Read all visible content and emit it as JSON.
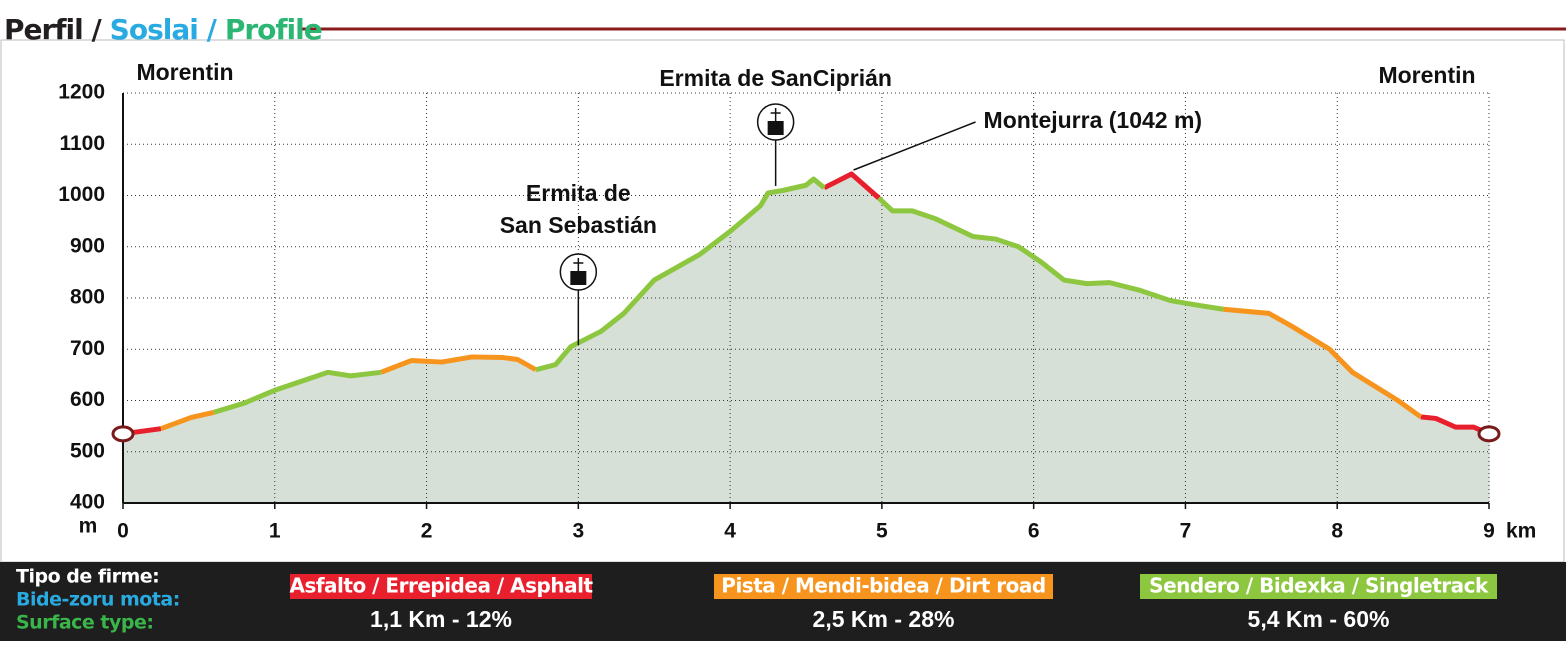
{
  "header": {
    "title_parts": [
      {
        "text": "Perfil /",
        "color": "#231f20"
      },
      {
        "text": "Soslai /",
        "color": "#29abe2"
      },
      {
        "text": "Profile",
        "color": "#2bb673"
      }
    ]
  },
  "chart_data": {
    "type": "line",
    "y_unit": "m",
    "x_unit": "km",
    "x": [
      0,
      0.25,
      0.45,
      0.6,
      0.8,
      1.0,
      1.2,
      1.35,
      1.5,
      1.7,
      1.9,
      2.1,
      2.3,
      2.5,
      2.6,
      2.72,
      2.85,
      2.95,
      3.15,
      3.3,
      3.5,
      3.8,
      4.0,
      4.2,
      4.25,
      4.35,
      4.5,
      4.55,
      4.62,
      4.8,
      4.98,
      5.07,
      5.2,
      5.35,
      5.6,
      5.75,
      5.9,
      6.05,
      6.2,
      6.35,
      6.5,
      6.7,
      6.9,
      7.1,
      7.25,
      7.55,
      7.7,
      7.95,
      8.1,
      8.4,
      8.55,
      8.65,
      8.78,
      8.9,
      9.0
    ],
    "series": [
      {
        "name": "Asfalto / Errepidea / Asphalt",
        "color": "#e8202e",
        "summary": "1,1 Km - 12%",
        "values": [
          535,
          545,
          null,
          null,
          null,
          null,
          null,
          null,
          null,
          null,
          null,
          null,
          null,
          null,
          null,
          null,
          null,
          null,
          null,
          null,
          null,
          null,
          null,
          null,
          null,
          null,
          null,
          null,
          1015,
          1042,
          995,
          null,
          null,
          null,
          null,
          null,
          null,
          null,
          null,
          null,
          null,
          null,
          null,
          null,
          null,
          null,
          null,
          null,
          null,
          null,
          568,
          565,
          548,
          548,
          535
        ]
      },
      {
        "name": "Pista / Mendi-bidea / Dirt road",
        "color": "#f7941d",
        "summary": "2,5 Km - 28%",
        "values": [
          null,
          545,
          567,
          577,
          null,
          null,
          null,
          null,
          null,
          655,
          678,
          675,
          685,
          684,
          680,
          660,
          null,
          null,
          null,
          null,
          null,
          null,
          null,
          null,
          null,
          null,
          null,
          null,
          null,
          null,
          null,
          null,
          null,
          null,
          null,
          null,
          null,
          null,
          null,
          null,
          null,
          null,
          null,
          null,
          778,
          770,
          745,
          700,
          655,
          600,
          568,
          null,
          null,
          null,
          null
        ]
      },
      {
        "name": "Sendero / Bidexka / Singletrack",
        "color": "#8dc63f",
        "summary": "5,4 Km - 60%",
        "values": [
          null,
          null,
          null,
          577,
          595,
          620,
          640,
          655,
          648,
          655,
          null,
          null,
          null,
          null,
          null,
          660,
          670,
          705,
          735,
          770,
          835,
          885,
          930,
          980,
          1005,
          1010,
          1020,
          1032,
          1015,
          null,
          995,
          970,
          970,
          955,
          920,
          915,
          900,
          870,
          835,
          828,
          830,
          815,
          795,
          785,
          778,
          null,
          null,
          null,
          null,
          null,
          null,
          null,
          null,
          null,
          null
        ]
      }
    ],
    "xlim": [
      0,
      9
    ],
    "xticks": [
      0,
      1,
      2,
      3,
      4,
      5,
      6,
      7,
      8,
      9
    ],
    "ylim": [
      400,
      1200
    ],
    "yticks": [
      400,
      500,
      600,
      700,
      800,
      900,
      1000,
      1100,
      1200
    ],
    "grid": true,
    "area_color": "#d6e0d6",
    "annotations": [
      {
        "lines": [
          "Morentin"
        ],
        "x": 0
      },
      {
        "lines": [
          "Ermita de",
          "San Sebastián"
        ],
        "x": 3.0
      },
      {
        "lines": [
          "Ermita de SanCiprián"
        ],
        "x": 4.3
      },
      {
        "lines": [
          "Montejurra (1042 m)"
        ],
        "x": 4.8
      },
      {
        "lines": [
          "Morentin"
        ],
        "x": 9
      }
    ]
  },
  "footer": {
    "labels": [
      {
        "text": "Tipo de firme:",
        "color": "#ffffff"
      },
      {
        "text": "Bide-zoru mota:",
        "color": "#29abe2"
      },
      {
        "text": "Surface type:",
        "color": "#39b54a"
      }
    ]
  }
}
